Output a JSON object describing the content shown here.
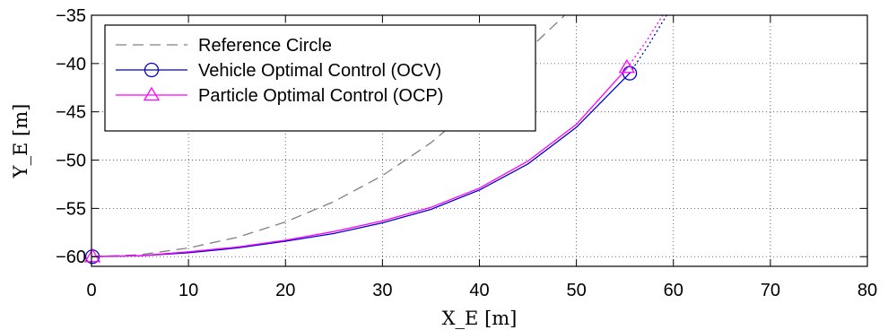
{
  "chart_data": {
    "type": "line",
    "xlabel": "X_E [m]",
    "ylabel": "Y_E [m]",
    "xlim": [
      0,
      80
    ],
    "ylim": [
      -61,
      -35
    ],
    "xticks": [
      "0",
      "10",
      "20",
      "30",
      "40",
      "50",
      "60",
      "70",
      "80"
    ],
    "yticks": [
      "−35",
      "−40",
      "−45",
      "−50",
      "−55",
      "−60"
    ],
    "grid": true,
    "legend_position": "top-left",
    "series": [
      {
        "name": "Reference Circle",
        "color": "#808080",
        "style": "dashed",
        "marker": "none",
        "x": [
          0,
          5,
          10,
          15,
          20,
          25,
          30,
          35,
          40,
          45,
          48.8
        ],
        "y": [
          -60,
          -59.8,
          -59.1,
          -58.0,
          -56.4,
          -54.3,
          -51.6,
          -48.2,
          -44.0,
          -38.6,
          -35
        ]
      },
      {
        "name": "Vehicle Optimal Control (OCV)",
        "color": "#0000cc",
        "style": "solid",
        "marker": "circle",
        "x": [
          0,
          5,
          10,
          15,
          20,
          25,
          30,
          35,
          40,
          45,
          50,
          55.5
        ],
        "y": [
          -60,
          -59.9,
          -59.6,
          -59.1,
          -58.4,
          -57.6,
          -56.5,
          -55.1,
          -53.1,
          -50.4,
          -46.6,
          -41.0
        ],
        "marker_points": [
          [
            0.1,
            -60
          ],
          [
            55.5,
            -41.0
          ]
        ],
        "extension": {
          "x": [
            55.5,
            57.5,
            59.3
          ],
          "y": [
            -41.0,
            -38.0,
            -35
          ]
        }
      },
      {
        "name": "Particle Optimal Control (OCP)",
        "color": "#ff00ff",
        "style": "solid",
        "marker": "triangle",
        "x": [
          0,
          5,
          10,
          15,
          20,
          25,
          30,
          35,
          40,
          45,
          50,
          55.2
        ],
        "y": [
          -60,
          -59.9,
          -59.5,
          -59.0,
          -58.3,
          -57.4,
          -56.3,
          -54.9,
          -52.9,
          -50.1,
          -46.3,
          -40.5
        ],
        "marker_points": [
          [
            0.1,
            -60
          ],
          [
            55.2,
            -40.4
          ]
        ],
        "extension": {
          "x": [
            55.2,
            57.2,
            58.9
          ],
          "y": [
            -40.5,
            -37.7,
            -35
          ]
        }
      }
    ]
  }
}
